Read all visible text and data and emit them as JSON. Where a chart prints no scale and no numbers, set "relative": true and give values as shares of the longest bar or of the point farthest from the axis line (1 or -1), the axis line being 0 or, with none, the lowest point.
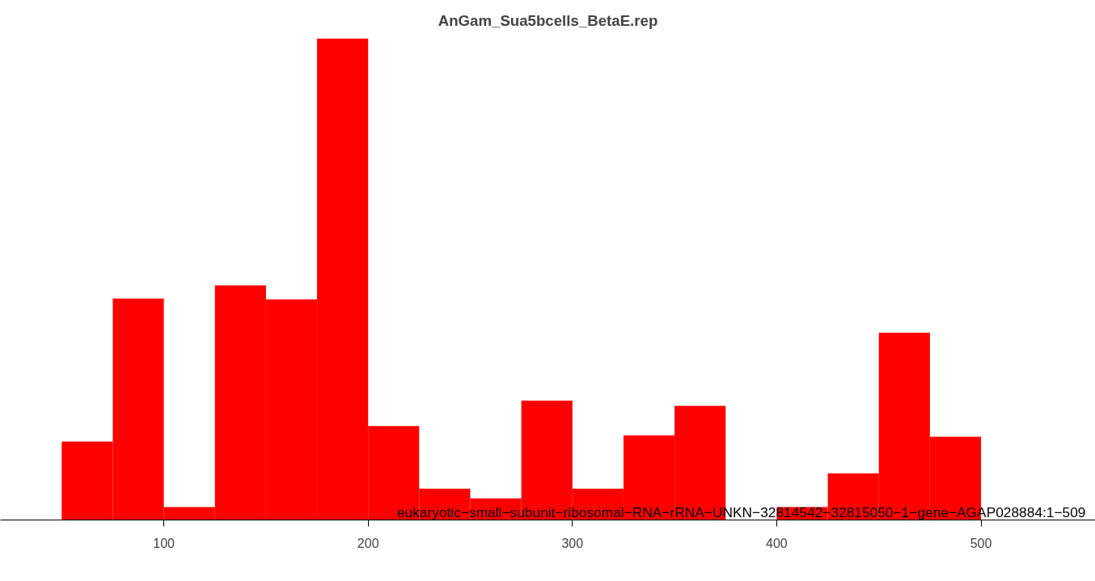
{
  "chart_data": {
    "type": "bar",
    "title": "AnGam_Sua5bcells_BetaE.rep",
    "relative": true,
    "x": [
      62.5,
      87.5,
      112.5,
      137.5,
      162.5,
      187.5,
      212.5,
      237.5,
      262.5,
      287.5,
      312.5,
      337.5,
      362.5,
      387.5,
      412.5,
      437.5,
      462.5,
      487.5
    ],
    "values": [
      0.163,
      0.46,
      0.027,
      0.487,
      0.458,
      1,
      0.195,
      0.065,
      0.045,
      0.248,
      0.065,
      0.176,
      0.237,
      0,
      0.027,
      0.097,
      0.389,
      0.173
    ],
    "color": "#ff0000",
    "xlim": [
      20,
      556
    ],
    "xticks": [
      100,
      200,
      300,
      400,
      500
    ],
    "tick_labels": "x",
    "grid": false,
    "annotations": [
      "eukaryotic−small−subunit−ribosomal−RNA−rRNA−UNKN−32814542−32815050−1−gene−AGAP028884:1−509"
    ]
  }
}
